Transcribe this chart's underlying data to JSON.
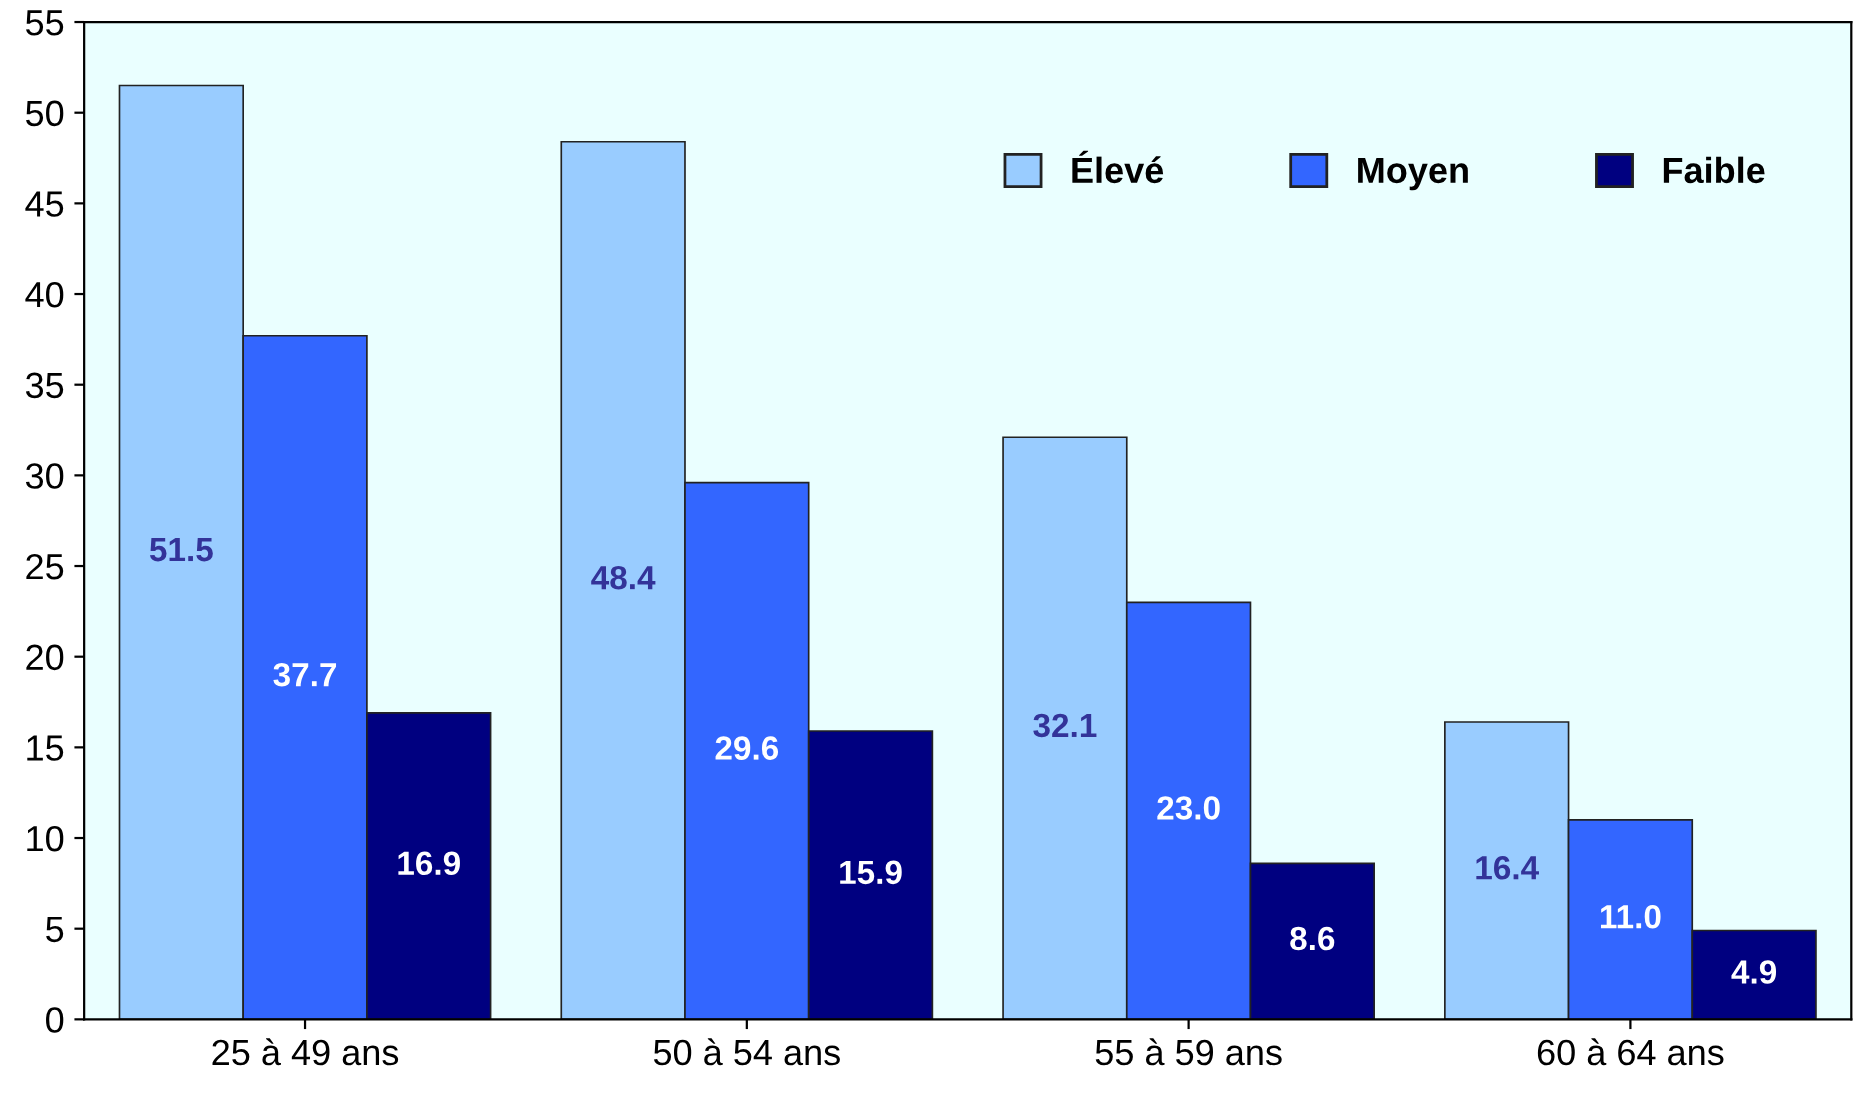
{
  "chart_data": {
    "type": "bar",
    "categories": [
      "25 à 49 ans",
      "50 à 54 ans",
      "55 à 59 ans",
      "60 à 64 ans"
    ],
    "series": [
      {
        "name": "Élevé",
        "color": "#99ccff",
        "values": [
          51.5,
          48.4,
          32.1,
          16.4
        ],
        "value_labels": [
          "51.5",
          "48.4",
          "32.1",
          "16.4"
        ]
      },
      {
        "name": "Moyen",
        "color": "#3366ff",
        "values": [
          37.7,
          29.6,
          23.0,
          11.0
        ],
        "value_labels": [
          "37.7",
          "29.6",
          "23.0",
          "11.0"
        ]
      },
      {
        "name": "Faible",
        "color": "#000080",
        "values": [
          16.9,
          15.9,
          8.6,
          4.9
        ],
        "value_labels": [
          "16.9",
          "15.9",
          "8.6",
          "4.9"
        ]
      }
    ],
    "ylim": [
      0,
      55
    ],
    "yticks": [
      0,
      5,
      10,
      15,
      20,
      25,
      30,
      35,
      40,
      45,
      50,
      55
    ],
    "grid": false,
    "legend": "top right"
  }
}
